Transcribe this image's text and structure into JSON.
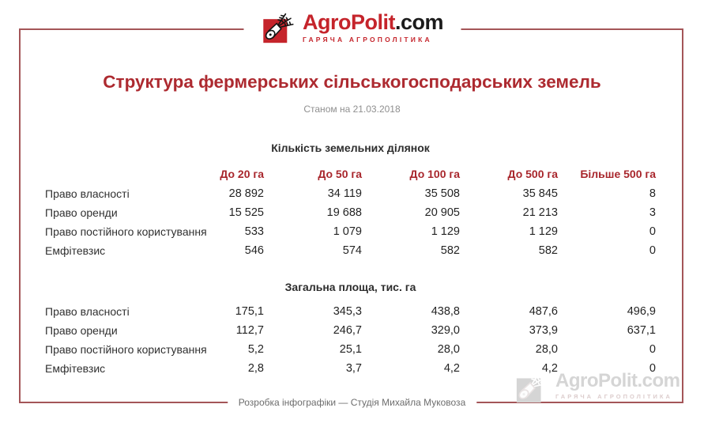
{
  "page": {
    "logo": {
      "icon": "megaphone-wheat-icon",
      "brand_primary": "AgroPolit",
      "brand_suffix": ".com",
      "tagline": "ГАРЯЧА АГРОПОЛІТИКА"
    },
    "title": "Структура фермерських сільськогосподарських земель",
    "subtitle": "Станом на 21.03.2018",
    "footer": "Розробка інфографіки — Студія Михайла Муковоза",
    "watermark": {
      "icon": "megaphone-wheat-icon",
      "brand": "AgroPolit.com",
      "tagline": "ГАРЯЧА АГРОПОЛІТИКА"
    }
  },
  "colors": {
    "title_red": "#ad2a30",
    "logo_red": "#c5242b",
    "header_red": "#a8262c",
    "border_red": "#a45558",
    "text_dark": "#303030",
    "subtitle_gray": "#8f8f8f",
    "footer_gray": "#6d6d6d",
    "watermark_gray": "#d5d5d5"
  },
  "chart_data": [
    {
      "type": "table",
      "title": "Кількість земельних ділянок",
      "columns": [
        "До 20 га",
        "До 50 га",
        "До 100 га",
        "До 500 га",
        "Більше 500 га"
      ],
      "rows": [
        {
          "label": "Право власності",
          "values": [
            "28 892",
            "34 119",
            "35 508",
            "35 845",
            "8"
          ]
        },
        {
          "label": "Право оренди",
          "values": [
            "15 525",
            "19 688",
            "20 905",
            "21 213",
            "3"
          ]
        },
        {
          "label": "Право постійного користування",
          "values": [
            "533",
            "1 079",
            "1 129",
            "1 129",
            "0"
          ]
        },
        {
          "label": "Емфітевзис",
          "values": [
            "546",
            "574",
            "582",
            "582",
            "0"
          ]
        }
      ]
    },
    {
      "type": "table",
      "title": "Загальна площа, тис. га",
      "columns": [
        "До 20 га",
        "До 50 га",
        "До 100 га",
        "До 500 га",
        "Більше 500 га"
      ],
      "rows": [
        {
          "label": "Право власності",
          "values": [
            "175,1",
            "345,3",
            "438,8",
            "487,6",
            "496,9"
          ]
        },
        {
          "label": "Право оренди",
          "values": [
            "112,7",
            "246,7",
            "329,0",
            "373,9",
            "637,1"
          ]
        },
        {
          "label": "Право постійного користування",
          "values": [
            "5,2",
            "25,1",
            "28,0",
            "28,0",
            "0"
          ]
        },
        {
          "label": "Емфітевзис",
          "values": [
            "2,8",
            "3,7",
            "4,2",
            "4,2",
            "0"
          ]
        }
      ]
    }
  ]
}
